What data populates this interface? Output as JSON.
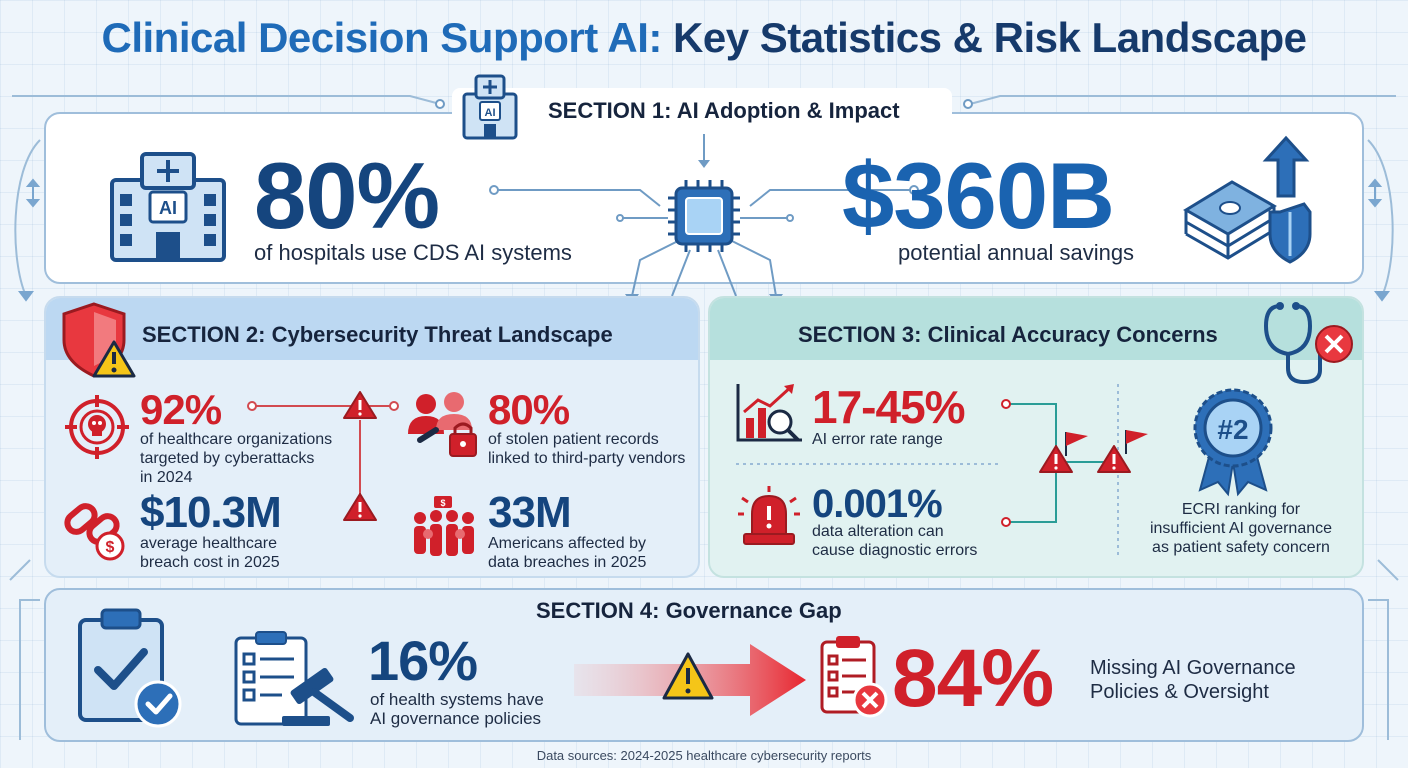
{
  "title": {
    "part1": "Clinical Decision Support AI:",
    "part2": "Key Statistics & Risk Landscape"
  },
  "section1": {
    "title": "SECTION 1: AI Adoption & Impact",
    "stat_left": {
      "value": "80%",
      "label": "of hospitals use CDS AI systems",
      "icon": "hospital-ai-icon"
    },
    "stat_right": {
      "value": "$360B",
      "label": "potential annual savings",
      "icon": "money-shield-icon"
    }
  },
  "section2": {
    "title": "SECTION 2: Cybersecurity Threat Landscape",
    "stats": [
      {
        "value": "92%",
        "label": [
          "of healthcare organizations",
          "targeted by cyberattacks",
          "in 2024"
        ],
        "icon": "target-skull-icon"
      },
      {
        "value": "80%",
        "label": [
          "of stolen patient records",
          "linked to third-party vendors"
        ],
        "icon": "vendor-lock-icon"
      },
      {
        "value": "$10.3M",
        "label": [
          "average healthcare",
          "breach cost in 2025"
        ],
        "icon": "broken-chain-icon"
      },
      {
        "value": "33M",
        "label": [
          "Americans affected by",
          "data breaches in 2025"
        ],
        "icon": "crowd-icon"
      }
    ]
  },
  "section3": {
    "title": "SECTION 3: Clinical Accuracy Concerns",
    "stats": [
      {
        "value": "17-45%",
        "label": [
          "AI error rate range"
        ],
        "icon": "chart-magnifier-icon"
      },
      {
        "value": "0.001%",
        "label": [
          "data alteration can",
          "cause diagnostic errors"
        ],
        "icon": "alarm-icon"
      }
    ],
    "badge": {
      "value": "#2",
      "label": [
        "ECRI ranking for",
        "insufficient AI governance",
        "as patient safety concern"
      ]
    }
  },
  "section4": {
    "title": "SECTION 4: Governance Gap",
    "stat_have": {
      "value": "16%",
      "label": [
        "of health systems have",
        "AI governance policies"
      ]
    },
    "stat_missing": {
      "value": "84%",
      "label": [
        "Missing AI Governance",
        "Policies & Oversight"
      ]
    }
  },
  "footer": "Data sources: 2024-2025 healthcare cybersecurity reports",
  "colors": {
    "title_blue": "#1f6bb8",
    "title_navy": "#163a6b",
    "stat_navy": "#15457e",
    "stat_blue": "#1a63b0",
    "alert_red": "#d0202a",
    "section2_bg": "#e4eff9",
    "section3_bg": "#e1f2f1"
  }
}
